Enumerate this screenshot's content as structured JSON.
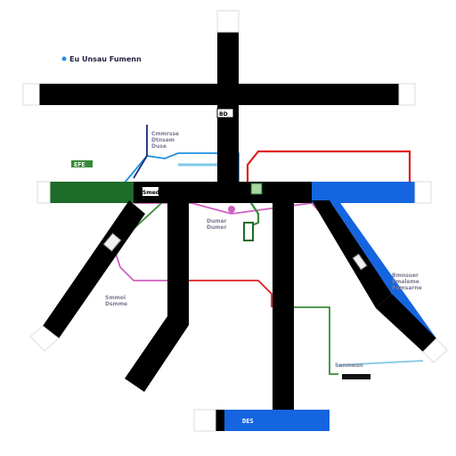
{
  "diagram": {
    "title_text": "Eu Unsau Fumenn",
    "center_label": "BD",
    "colors": {
      "black": "#000000",
      "green": "#1e6b2a",
      "blue": "#1565e0",
      "red": "#e02020",
      "pink": "#d060c0",
      "wire_blue": "#2090e0",
      "wire_green": "#3a8a3a",
      "wire_navy": "#1a2a80",
      "light_blue": "#80c8e8"
    },
    "labels": [
      {
        "text": "Cmmrsse\nDtnsem\nDuse",
        "kind": "muted"
      },
      {
        "text": "EFE",
        "kind": "green-tag"
      },
      {
        "text": "Smed",
        "kind": "tag"
      },
      {
        "text": "Dumar\nDumer",
        "kind": "muted"
      },
      {
        "text": "Smmoi\nDsmme",
        "kind": "muted"
      },
      {
        "text": "Bmnsuer\nEmaleme\nPomsarne",
        "kind": "muted"
      },
      {
        "text": "Sanmeun",
        "kind": "muted"
      },
      {
        "text": "DES",
        "kind": "blue-tag"
      }
    ]
  }
}
